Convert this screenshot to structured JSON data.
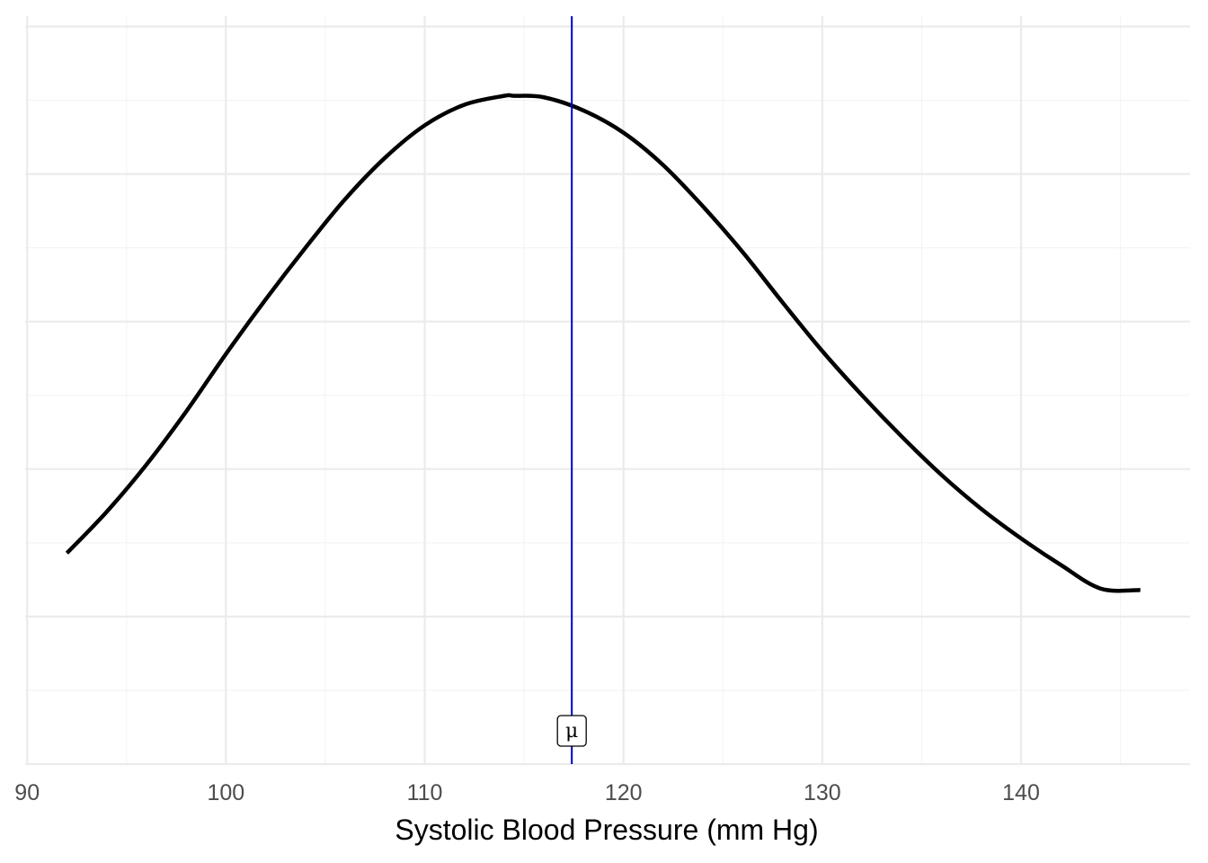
{
  "chart_data": {
    "type": "line",
    "title": "",
    "xlabel": "Systolic Blood Pressure (mm Hg)",
    "ylabel": "",
    "xlim": [
      89.9,
      148.5
    ],
    "ylim": [
      0,
      0.0507
    ],
    "x_ticks": [
      90,
      100,
      110,
      120,
      130,
      140
    ],
    "x_tick_labels": [
      "90",
      "100",
      "110",
      "120",
      "130",
      "140"
    ],
    "y_tick_labels_shown": false,
    "grid": true,
    "legend": "none",
    "series": [
      {
        "color": "#000000",
        "x": [
          92,
          94,
          96,
          98,
          100,
          102,
          104,
          106,
          108,
          110,
          112,
          114,
          114.5,
          116,
          118,
          120,
          122,
          124,
          126,
          128,
          130,
          132,
          134,
          136,
          138,
          140,
          142,
          144,
          146
        ],
        "y": [
          0.0143,
          0.0171,
          0.0203,
          0.0239,
          0.0278,
          0.0315,
          0.035,
          0.0383,
          0.0411,
          0.0433,
          0.0447,
          0.0453,
          0.0453,
          0.0452,
          0.0443,
          0.0428,
          0.0406,
          0.0378,
          0.0347,
          0.0313,
          0.028,
          0.025,
          0.0222,
          0.0196,
          0.0173,
          0.0153,
          0.0135,
          0.0119,
          0.0118
        ]
      }
    ],
    "annotations": [
      {
        "type": "vline",
        "x": 117.4,
        "color": "#0000cd",
        "label": "μ"
      }
    ]
  }
}
